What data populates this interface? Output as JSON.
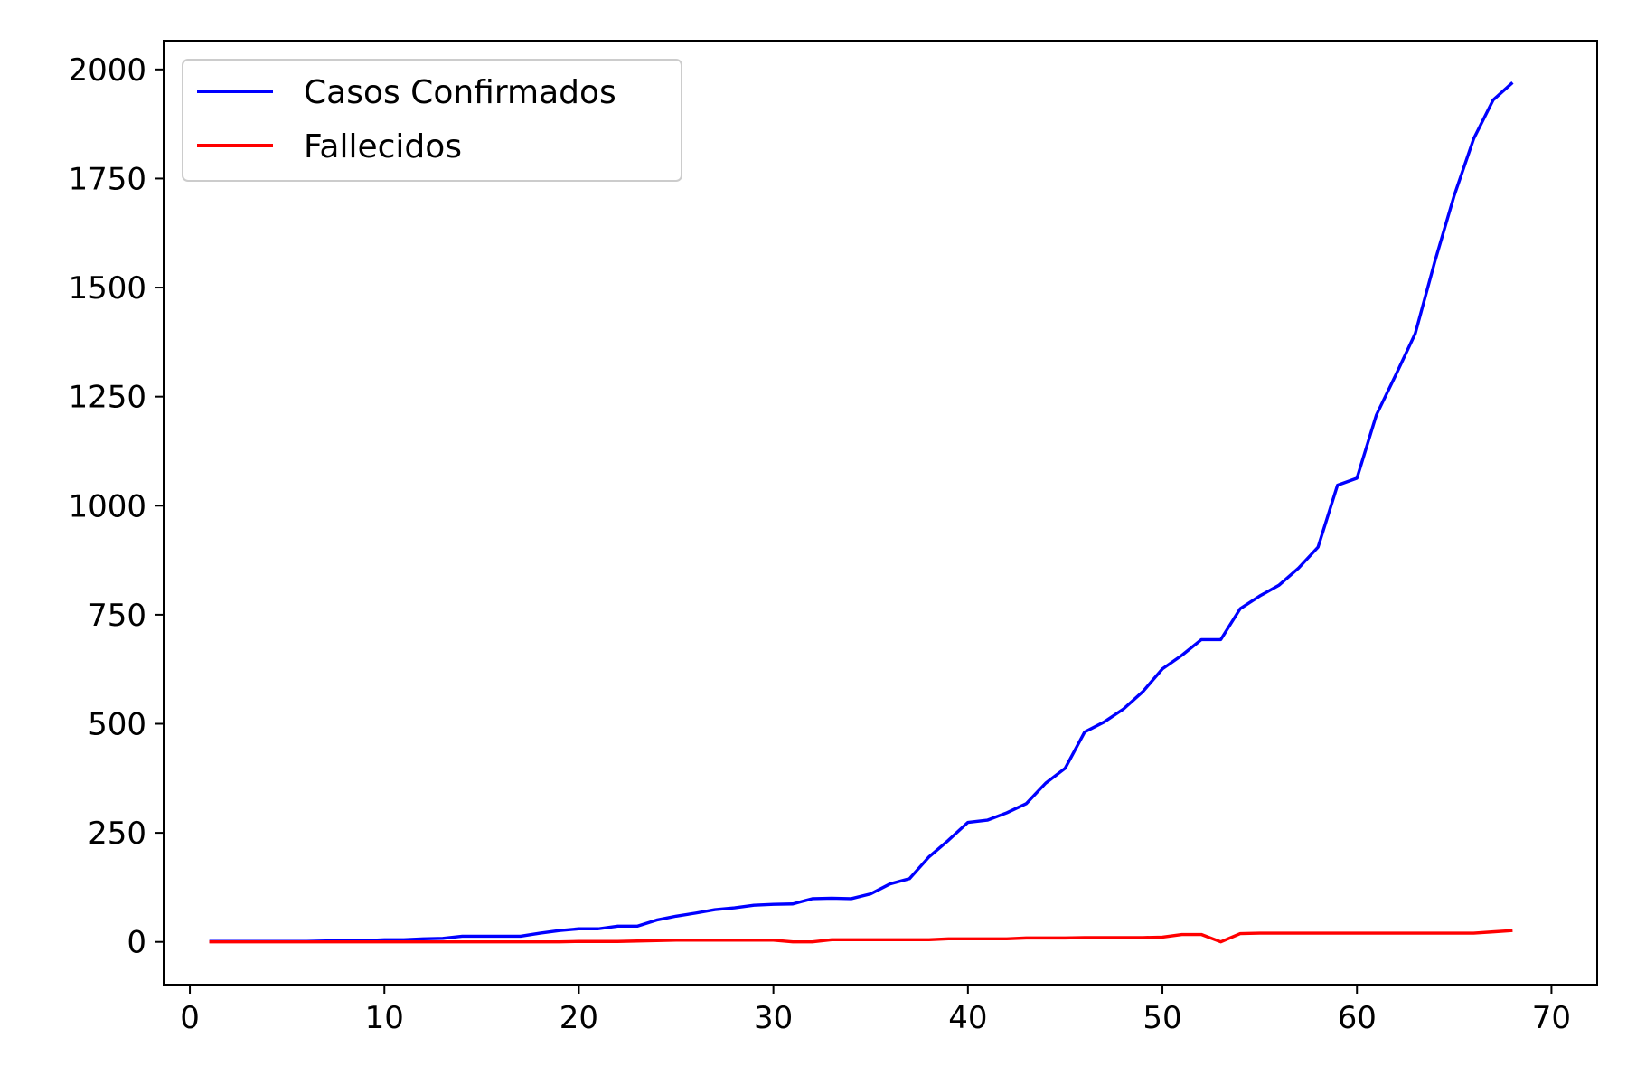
{
  "chart_data": {
    "type": "line",
    "title": "",
    "xlabel": "",
    "ylabel": "",
    "xlim": [
      -1.35,
      72.35
    ],
    "ylim": [
      -98,
      2066
    ],
    "x_ticks": [
      0,
      10,
      20,
      30,
      40,
      50,
      60,
      70
    ],
    "y_ticks": [
      0,
      250,
      500,
      750,
      1000,
      1250,
      1500,
      1750,
      2000
    ],
    "grid": false,
    "legend_position": "upper-left",
    "x": [
      1,
      2,
      3,
      4,
      5,
      6,
      7,
      8,
      9,
      10,
      11,
      12,
      13,
      14,
      15,
      16,
      17,
      18,
      19,
      20,
      21,
      22,
      23,
      24,
      25,
      26,
      27,
      28,
      29,
      30,
      31,
      32,
      33,
      34,
      35,
      36,
      37,
      38,
      39,
      40,
      41,
      42,
      43,
      44,
      45,
      46,
      47,
      48,
      49,
      50,
      51,
      52,
      53,
      54,
      55,
      56,
      57,
      58,
      59,
      60,
      61,
      62,
      63,
      64,
      65,
      66,
      67,
      68
    ],
    "series": [
      {
        "name": "Casos Confirmados",
        "color": "#0000ff",
        "values": [
          1,
          1,
          1,
          1,
          1,
          1,
          2,
          2,
          3,
          5,
          5,
          7,
          8,
          13,
          13,
          13,
          13,
          20,
          26,
          30,
          30,
          36,
          36,
          50,
          59,
          66,
          74,
          78,
          84,
          86,
          87,
          99,
          100,
          99,
          110,
          133,
          145,
          195,
          233,
          274,
          279,
          296,
          317,
          364,
          398,
          481,
          504,
          534,
          574,
          626,
          657,
          693,
          693,
          764,
          793,
          818,
          857,
          905,
          1047,
          1063,
          1208,
          1300,
          1395,
          1559,
          1711,
          1841,
          1930,
          1970
        ],
        "values_note": ""
      },
      {
        "name": "Fallecidos",
        "color": "#ff0000",
        "values": [
          0,
          0,
          0,
          0,
          0,
          0,
          0,
          0,
          0,
          0,
          0,
          0,
          0,
          0,
          0,
          0,
          0,
          0,
          0,
          1,
          1,
          1,
          2,
          3,
          4,
          4,
          4,
          4,
          4,
          4,
          0,
          0,
          5,
          5,
          5,
          5,
          5,
          5,
          7,
          7,
          7,
          7,
          9,
          9,
          9,
          10,
          10,
          10,
          10,
          11,
          17,
          17,
          0,
          19,
          20,
          20,
          20,
          20,
          20,
          20,
          20,
          20,
          20,
          20,
          20,
          20,
          23,
          26
        ]
      }
    ]
  }
}
